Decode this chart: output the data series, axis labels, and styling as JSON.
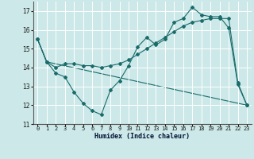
{
  "xlabel": "Humidex (Indice chaleur)",
  "bg_color": "#cce8e8",
  "line_color": "#1a6b6b",
  "grid_color": "#ffffff",
  "ylim": [
    11,
    17.5
  ],
  "xlim": [
    -0.5,
    23.5
  ],
  "yticks": [
    11,
    12,
    13,
    14,
    15,
    16,
    17
  ],
  "xticks": [
    0,
    1,
    2,
    3,
    4,
    5,
    6,
    7,
    8,
    9,
    10,
    11,
    12,
    13,
    14,
    15,
    16,
    17,
    18,
    19,
    20,
    21,
    22,
    23
  ],
  "series0_x": [
    0,
    1,
    2,
    3,
    4,
    5,
    6,
    7,
    8,
    9,
    10,
    11,
    12,
    13,
    14,
    15,
    16,
    17,
    18,
    19,
    20,
    21,
    22,
    23
  ],
  "series0_y": [
    15.5,
    14.3,
    13.7,
    13.5,
    12.7,
    12.1,
    11.7,
    11.5,
    12.8,
    13.3,
    14.1,
    15.1,
    15.6,
    15.2,
    15.5,
    16.4,
    16.6,
    17.2,
    16.8,
    16.7,
    16.7,
    16.1,
    13.1,
    12.0
  ],
  "series1_x": [
    0,
    1,
    2,
    3,
    4,
    5,
    6,
    7,
    8,
    9,
    10,
    11,
    12,
    13,
    14,
    15,
    16,
    17,
    18,
    19,
    20,
    21,
    22,
    23
  ],
  "series1_y": [
    15.5,
    14.3,
    14.0,
    14.2,
    14.2,
    14.1,
    14.1,
    14.0,
    14.1,
    14.2,
    14.4,
    14.7,
    15.0,
    15.3,
    15.6,
    15.9,
    16.2,
    16.4,
    16.5,
    16.6,
    16.6,
    16.6,
    13.2,
    12.0
  ],
  "series2_x": [
    0,
    1,
    23
  ],
  "series2_y": [
    15.5,
    14.3,
    12.0
  ]
}
